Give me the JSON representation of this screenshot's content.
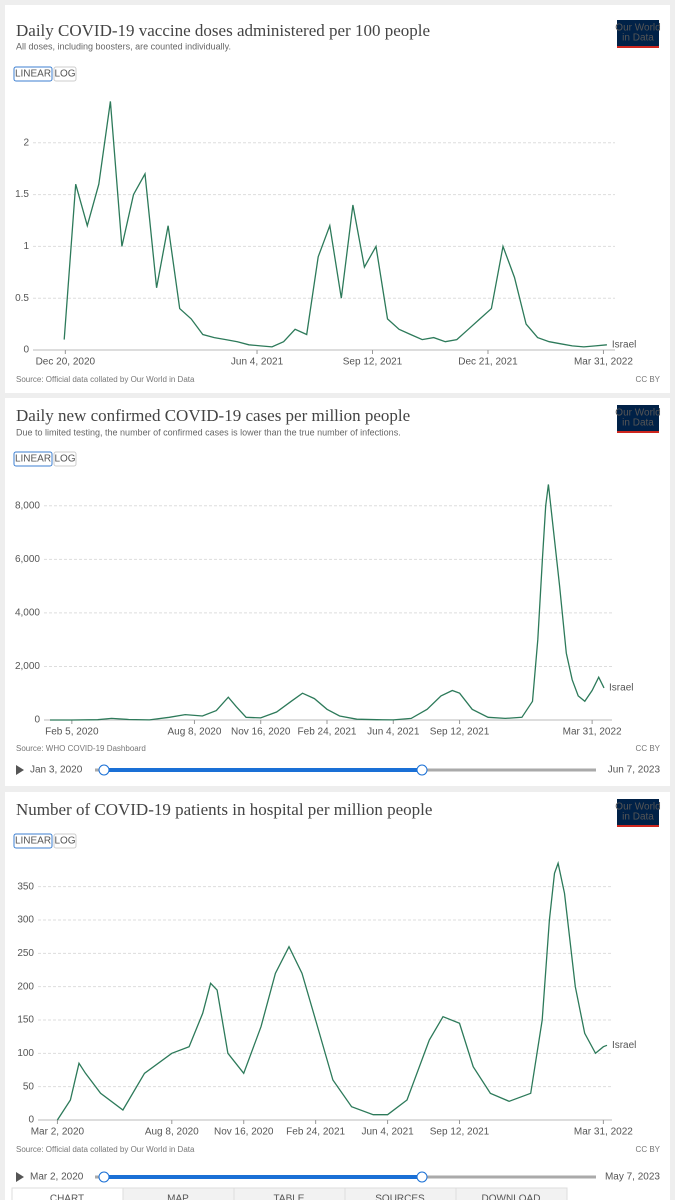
{
  "chart_data": [
    {
      "type": "line",
      "title": "Daily COVID-19 vaccine doses administered per 100 people",
      "subtitle": "All doses, including boosters, are counted individually.",
      "scale_buttons": [
        "LINEAR",
        "LOG"
      ],
      "logo": [
        "Our World",
        "in Data"
      ],
      "x": [
        "2020-12-19",
        "2020-12-29",
        "2021-01-08",
        "2021-01-18",
        "2021-01-28",
        "2021-02-07",
        "2021-02-17",
        "2021-02-27",
        "2021-03-09",
        "2021-03-19",
        "2021-03-29",
        "2021-04-08",
        "2021-04-18",
        "2021-04-28",
        "2021-05-08",
        "2021-05-18",
        "2021-05-28",
        "2021-06-07",
        "2021-06-17",
        "2021-06-27",
        "2021-07-07",
        "2021-07-17",
        "2021-07-27",
        "2021-08-06",
        "2021-08-16",
        "2021-08-26",
        "2021-09-05",
        "2021-09-15",
        "2021-09-25",
        "2021-10-05",
        "2021-10-15",
        "2021-10-25",
        "2021-11-04",
        "2021-11-14",
        "2021-11-24",
        "2021-12-04",
        "2021-12-14",
        "2021-12-24",
        "2022-01-03",
        "2022-01-13",
        "2022-01-23",
        "2022-02-02",
        "2022-02-12",
        "2022-02-22",
        "2022-03-04",
        "2022-03-14",
        "2022-03-24",
        "2022-04-03"
      ],
      "series": [
        {
          "name": "Israel",
          "color": "#2d7a5a",
          "values": [
            0.1,
            1.6,
            1.2,
            1.6,
            2.4,
            1.0,
            1.5,
            1.7,
            0.6,
            1.2,
            0.4,
            0.3,
            0.15,
            0.12,
            0.1,
            0.08,
            0.05,
            0.04,
            0.03,
            0.08,
            0.2,
            0.15,
            0.9,
            1.2,
            0.5,
            1.4,
            0.8,
            1.0,
            0.3,
            0.2,
            0.15,
            0.1,
            0.12,
            0.08,
            0.1,
            0.2,
            0.3,
            0.4,
            1.0,
            0.7,
            0.25,
            0.12,
            0.08,
            0.06,
            0.04,
            0.03,
            0.04,
            0.05
          ]
        }
      ],
      "xlim": [
        "2020-11-22",
        "2022-04-10"
      ],
      "xticks": [
        {
          "value": "2020-12-20",
          "label": "Dec 20, 2020"
        },
        {
          "value": "2021-06-04",
          "label": "Jun 4, 2021"
        },
        {
          "value": "2021-09-12",
          "label": "Sep 12, 2021"
        },
        {
          "value": "2021-12-21",
          "label": "Dec 21, 2021"
        },
        {
          "value": "2022-03-31",
          "label": "Mar 31, 2022"
        }
      ],
      "ylim": [
        0,
        2.5
      ],
      "yticks": [
        0,
        0.5,
        1,
        1.5,
        2
      ],
      "grid": true,
      "source": "Source: Official data collated by Our World in Data",
      "license": "CC BY"
    },
    {
      "type": "line",
      "title": "Daily new confirmed COVID-19 cases per million people",
      "subtitle": "Due to limited testing, the number of confirmed cases is lower than the true number of infections.",
      "scale_buttons": [
        "LINEAR",
        "LOG"
      ],
      "logo": [
        "Our World",
        "in Data"
      ],
      "x": [
        "2020-01-03",
        "2020-02-05",
        "2020-03-15",
        "2020-04-05",
        "2020-05-01",
        "2020-06-01",
        "2020-07-01",
        "2020-07-25",
        "2020-08-20",
        "2020-09-10",
        "2020-09-28",
        "2020-10-10",
        "2020-10-25",
        "2020-11-16",
        "2020-12-10",
        "2021-01-01",
        "2021-01-18",
        "2021-02-05",
        "2021-02-24",
        "2021-03-15",
        "2021-04-10",
        "2021-05-10",
        "2021-06-04",
        "2021-07-01",
        "2021-07-25",
        "2021-08-15",
        "2021-09-01",
        "2021-09-12",
        "2021-10-01",
        "2021-10-25",
        "2021-11-20",
        "2021-12-15",
        "2021-12-31",
        "2022-01-08",
        "2022-01-15",
        "2022-01-20",
        "2022-01-24",
        "2022-02-01",
        "2022-02-10",
        "2022-02-20",
        "2022-03-01",
        "2022-03-10",
        "2022-03-20",
        "2022-03-31",
        "2022-04-10",
        "2022-04-18"
      ],
      "series": [
        {
          "name": "Israel",
          "color": "#2d7a5a",
          "values": [
            0,
            0,
            10,
            60,
            20,
            5,
            100,
            200,
            150,
            350,
            850,
            500,
            100,
            80,
            300,
            700,
            1000,
            800,
            400,
            150,
            30,
            10,
            5,
            60,
            400,
            900,
            1100,
            1000,
            400,
            100,
            60,
            100,
            700,
            3000,
            6000,
            8000,
            8800,
            7000,
            5000,
            2500,
            1500,
            900,
            700,
            1100,
            1600,
            1200
          ]
        }
      ],
      "xlim": [
        "2019-12-25",
        "2022-04-30"
      ],
      "xticks": [
        {
          "value": "2020-02-05",
          "label": "Feb 5, 2020"
        },
        {
          "value": "2020-08-08",
          "label": "Aug 8, 2020"
        },
        {
          "value": "2020-11-16",
          "label": "Nov 16, 2020"
        },
        {
          "value": "2021-02-24",
          "label": "Feb 24, 2021"
        },
        {
          "value": "2021-06-04",
          "label": "Jun 4, 2021"
        },
        {
          "value": "2021-09-12",
          "label": "Sep 12, 2021"
        },
        {
          "value": "2022-03-31",
          "label": "Mar 31, 2022"
        }
      ],
      "ylim": [
        0,
        9000
      ],
      "yticks": [
        0,
        {
          "value": 2000,
          "label": "2,000"
        },
        {
          "value": 4000,
          "label": "4,000"
        },
        {
          "value": 6000,
          "label": "6,000"
        },
        {
          "value": 8000,
          "label": "8,000"
        }
      ],
      "grid": true,
      "source": "Source: WHO COVID-19 Dashboard",
      "license": "CC BY",
      "timeline_start": "Jan 3, 2020",
      "timeline_end": "Jun 7, 2023"
    },
    {
      "type": "line",
      "title": "Number of COVID-19 patients in hospital per million people",
      "scale_buttons": [
        "LINEAR",
        "LOG"
      ],
      "logo": [
        "Our World",
        "in Data"
      ],
      "x": [
        "2020-03-02",
        "2020-03-20",
        "2020-04-01",
        "2020-04-10",
        "2020-05-01",
        "2020-06-01",
        "2020-07-01",
        "2020-08-08",
        "2020-09-01",
        "2020-09-20",
        "2020-10-01",
        "2020-10-10",
        "2020-10-25",
        "2020-11-16",
        "2020-12-10",
        "2020-12-30",
        "2021-01-18",
        "2021-02-05",
        "2021-02-24",
        "2021-03-20",
        "2021-04-15",
        "2021-05-15",
        "2021-06-04",
        "2021-07-01",
        "2021-08-01",
        "2021-08-20",
        "2021-09-12",
        "2021-10-01",
        "2021-10-25",
        "2021-11-20",
        "2021-12-20",
        "2022-01-05",
        "2022-01-15",
        "2022-01-22",
        "2022-01-27",
        "2022-02-05",
        "2022-02-20",
        "2022-03-05",
        "2022-03-20",
        "2022-03-31",
        "2022-04-05"
      ],
      "series": [
        {
          "name": "Israel",
          "color": "#2d7a5a",
          "values": [
            0,
            30,
            85,
            70,
            40,
            15,
            70,
            100,
            110,
            160,
            205,
            195,
            100,
            70,
            140,
            220,
            260,
            220,
            150,
            60,
            20,
            8,
            8,
            30,
            120,
            155,
            145,
            80,
            40,
            28,
            40,
            150,
            300,
            370,
            385,
            340,
            200,
            130,
            100,
            110,
            112
          ]
        }
      ],
      "xlim": [
        "2020-02-04",
        "2022-04-12"
      ],
      "xticks": [
        {
          "value": "2020-03-02",
          "label": "Mar 2, 2020"
        },
        {
          "value": "2020-08-08",
          "label": "Aug 8, 2020"
        },
        {
          "value": "2020-11-16",
          "label": "Nov 16, 2020"
        },
        {
          "value": "2021-02-24",
          "label": "Feb 24, 2021"
        },
        {
          "value": "2021-06-04",
          "label": "Jun 4, 2021"
        },
        {
          "value": "2021-09-12",
          "label": "Sep 12, 2021"
        },
        {
          "value": "2022-03-31",
          "label": "Mar 31, 2022"
        }
      ],
      "ylim": [
        0,
        390
      ],
      "yticks": [
        0,
        50,
        100,
        150,
        200,
        250,
        300,
        350
      ],
      "grid": true,
      "source": "Source: Official data collated by Our World in Data",
      "license": "CC BY",
      "timeline_start": "Mar 2, 2020",
      "timeline_end": "May 7, 2023"
    }
  ],
  "tabs": [
    "CHART",
    "MAP",
    "TABLE",
    "SOURCES",
    "DOWNLOAD"
  ]
}
